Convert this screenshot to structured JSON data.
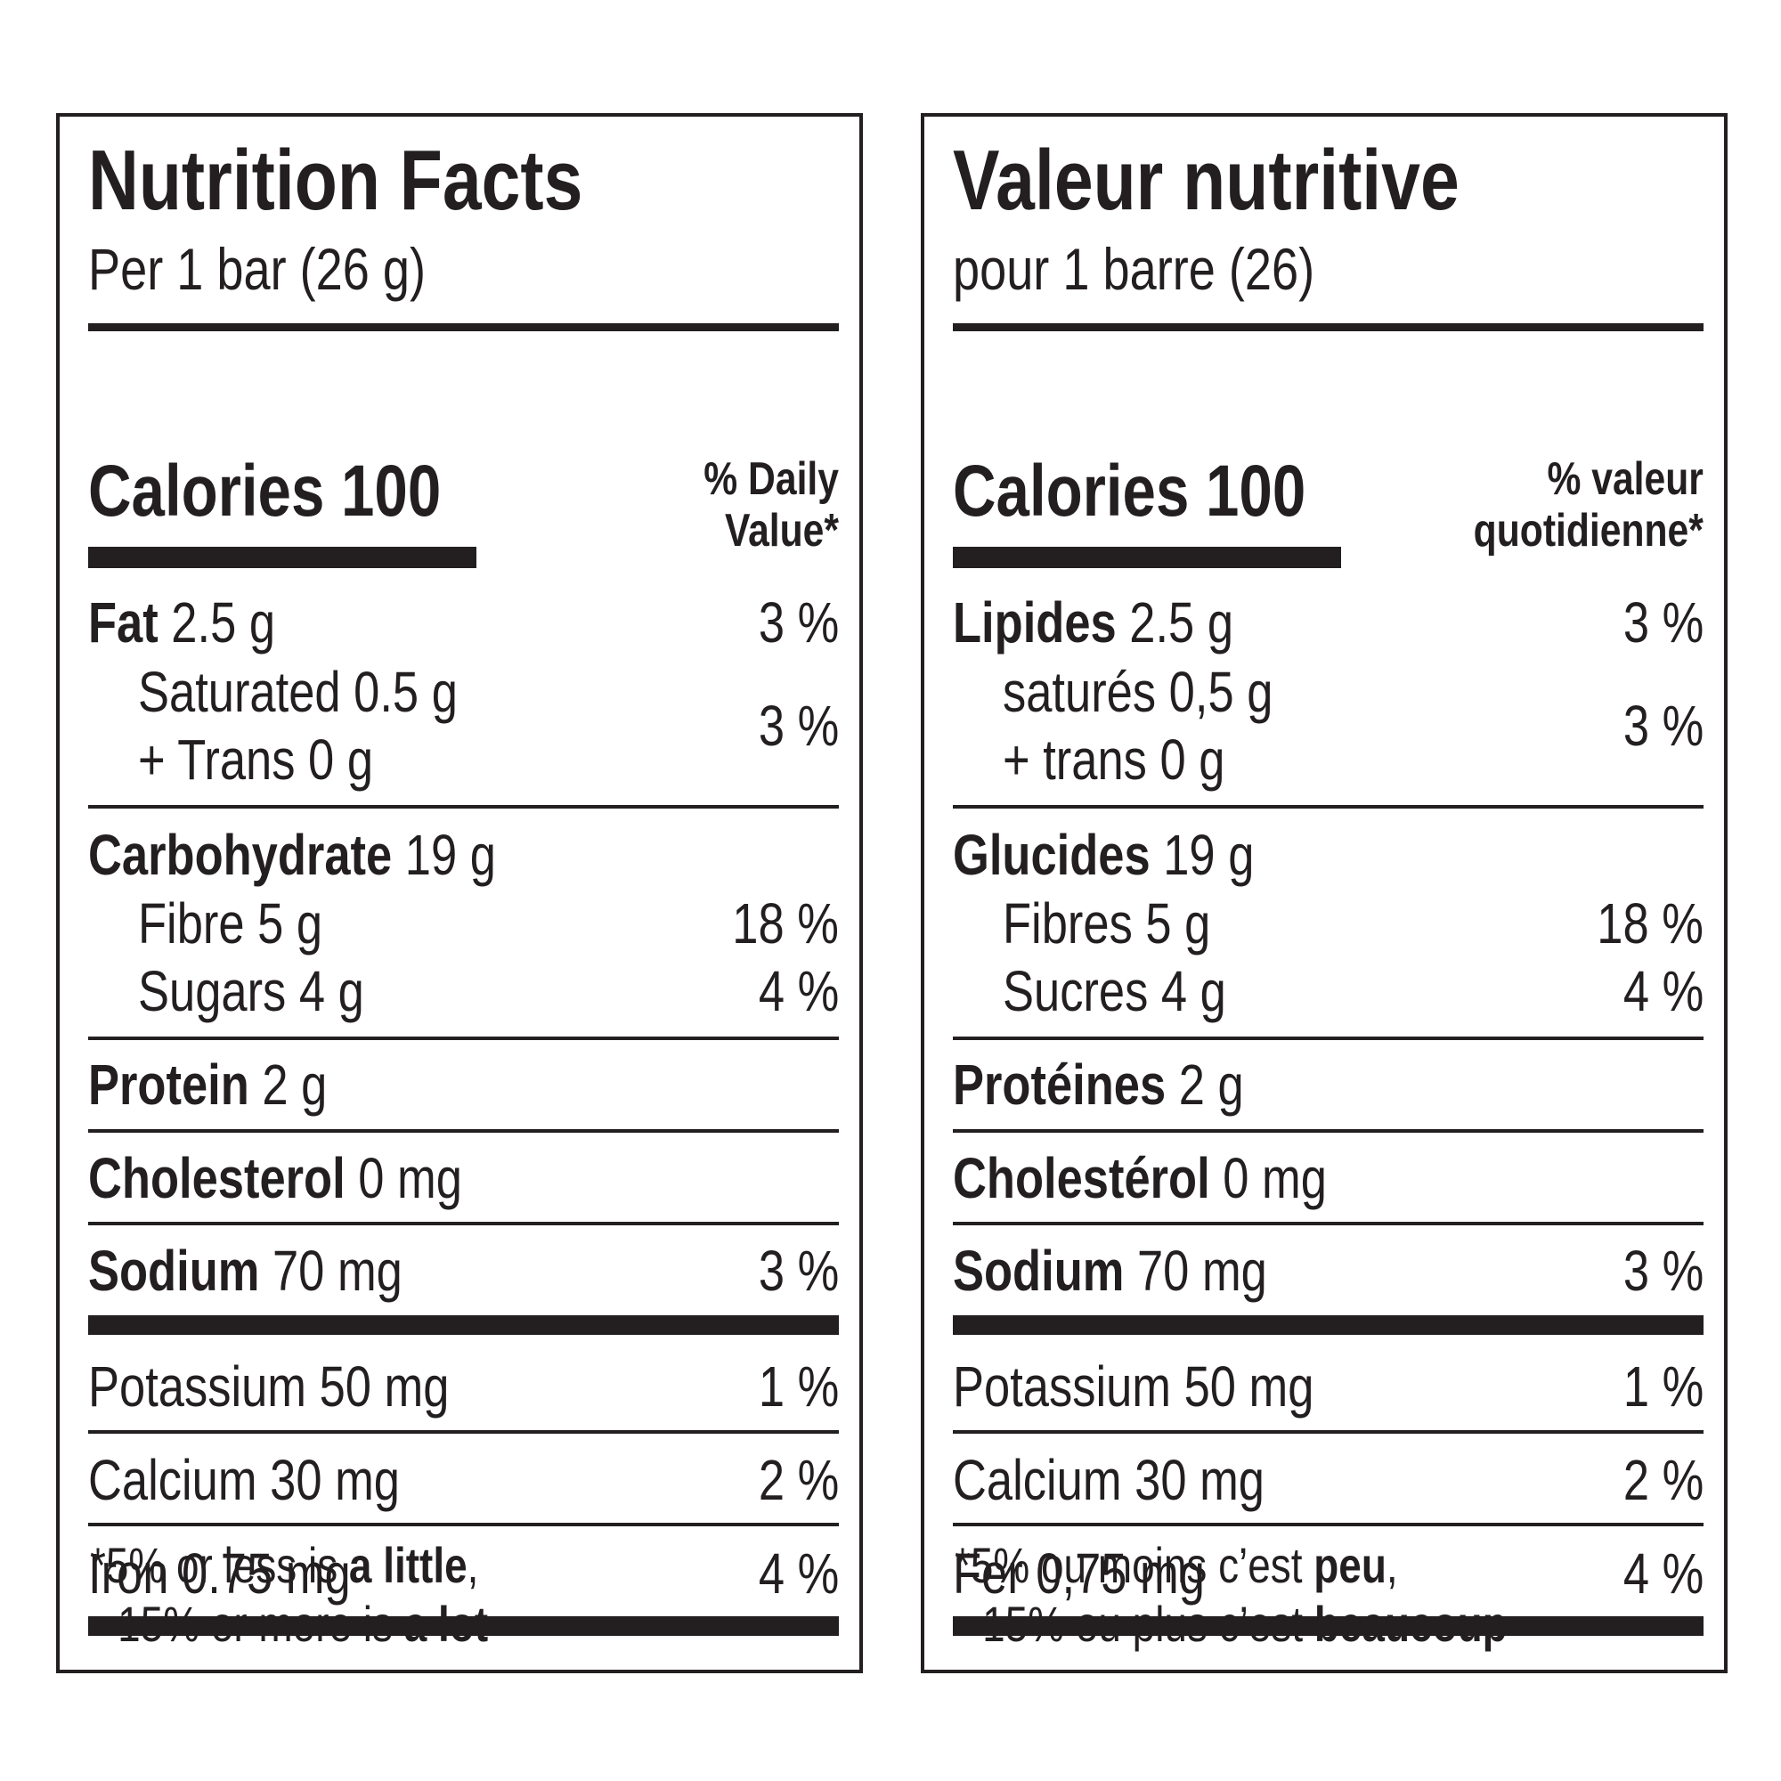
{
  "english": {
    "title": "Nutrition Facts",
    "serving": "Per 1 bar (26 g)",
    "calories": "Calories 100",
    "dv_line1": "% Daily",
    "dv_line2": "Value*",
    "fat": {
      "name": "Fat",
      "amount": "2.5 g",
      "dv": "3 %"
    },
    "saturated": "Saturated 0.5 g",
    "trans": "+ Trans 0 g",
    "sat_trans_dv": "3 %",
    "carbohydrate": {
      "name": "Carbohydrate",
      "amount": "19 g"
    },
    "fibre": {
      "label": "Fibre 5 g",
      "dv": "18 %"
    },
    "sugars": {
      "label": "Sugars 4 g",
      "dv": "4 %"
    },
    "protein": {
      "name": "Protein",
      "amount": "2 g"
    },
    "cholesterol": {
      "name": "Cholesterol",
      "amount": "0 mg"
    },
    "sodium": {
      "name": "Sodium",
      "amount": "70 mg",
      "dv": "3 %"
    },
    "potassium": {
      "label": "Potassium 50 mg",
      "dv": "1 %"
    },
    "calcium": {
      "label": "Calcium 30 mg",
      "dv": "2 %"
    },
    "iron": {
      "label": "Iron 0.75 mg",
      "dv": "4 %"
    },
    "footnote": {
      "line1_prefix": "*5% or less is ",
      "line1_bold": "a little",
      "line1_suffix": ",",
      "line2_prefix": "15% or more is ",
      "line2_bold": "a lot"
    }
  },
  "french": {
    "title": "Valeur nutritive",
    "serving": "pour 1 barre (26)",
    "calories": "Calories 100",
    "dv_line1": "% valeur",
    "dv_line2": "quotidienne*",
    "fat": {
      "name": "Lipides",
      "amount": "2.5 g",
      "dv": "3 %"
    },
    "saturated": "saturés 0,5 g",
    "trans": "+ trans 0 g",
    "sat_trans_dv": "3 %",
    "carbohydrate": {
      "name": "Glucides",
      "amount": "19 g"
    },
    "fibre": {
      "label": "Fibres 5 g",
      "dv": "18 %"
    },
    "sugars": {
      "label": "Sucres 4 g",
      "dv": "4 %"
    },
    "protein": {
      "name": "Protéines",
      "amount": "2 g"
    },
    "cholesterol": {
      "name": "Cholestérol",
      "amount": "0 mg"
    },
    "sodium": {
      "name": "Sodium",
      "amount": "70 mg",
      "dv": "3 %"
    },
    "potassium": {
      "label": "Potassium 50 mg",
      "dv": "1 %"
    },
    "calcium": {
      "label": "Calcium 30 mg",
      "dv": "2 %"
    },
    "iron": {
      "label": "Fer 0,75 mg",
      "dv": "4 %"
    },
    "footnote": {
      "line1_prefix": "*5% ou moins c’est ",
      "line1_bold": "peu",
      "line1_suffix": ",",
      "line2_prefix": "15% ou plus c’est ",
      "line2_bold": "beaucoup"
    }
  }
}
